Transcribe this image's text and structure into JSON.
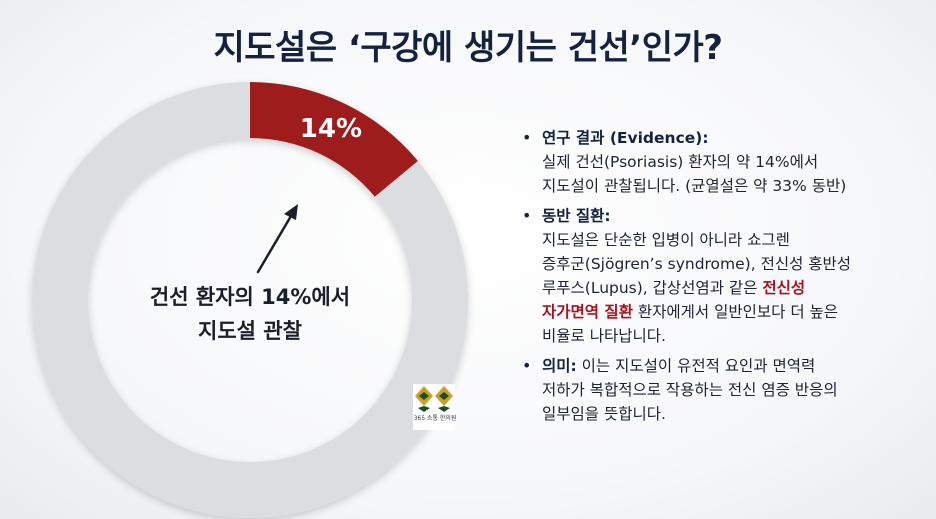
{
  "title": "지도설은 ‘구강에 생기는 건선’인가?",
  "colors": {
    "accent": "#9e1b1f",
    "ring": "#dcdde1",
    "title": "#14223f",
    "emphasis": "#a31422",
    "logo_gold": "#c9a227",
    "logo_green": "#1e4d2b"
  },
  "chart_data": {
    "type": "pie",
    "variant": "donut",
    "slices": [
      {
        "label": "14%",
        "value": 14,
        "color": "#9e1b1f"
      },
      {
        "label": "",
        "value": 86,
        "color": "#dcdde1"
      }
    ],
    "center_text": [
      "건선 환자의 14%에서",
      "지도설 관찰"
    ],
    "annotation": "arrow from center text to 14% slice"
  },
  "logo": {
    "icon": "diamond-pair-icon",
    "caption": "365 소통 한의원"
  },
  "bullets": [
    {
      "heading": "연구 결과 (Evidence):",
      "lines": [
        "실제 건선(Psoriasis) 환자의 약 14%에서",
        "지도설이 관찰됩니다. (균열설은 약 33% 동반)"
      ]
    },
    {
      "heading": "동반 질환:",
      "line1": "지도설은 단순한 입병이 아니라 쇼그렌",
      "line2": "증후군(Sjögren’s syndrome), 전신성 홍반성",
      "line3_plain": "루푸스(Lupus), 갑상선염과 같은 ",
      "line3_emph": "전신성",
      "line4_emph": "자가면역 질환",
      "line4_plain": " 환자에게서 일반인보다 더 높은",
      "line5": "비율로 나타납니다."
    },
    {
      "heading": "의미:",
      "line1": " 이는 지도설이 유전적 요인과 면역력",
      "line2": "저하가 복합적으로 작용하는 전신 염증 반응의",
      "line3": "일부임을 뜻합니다."
    }
  ]
}
